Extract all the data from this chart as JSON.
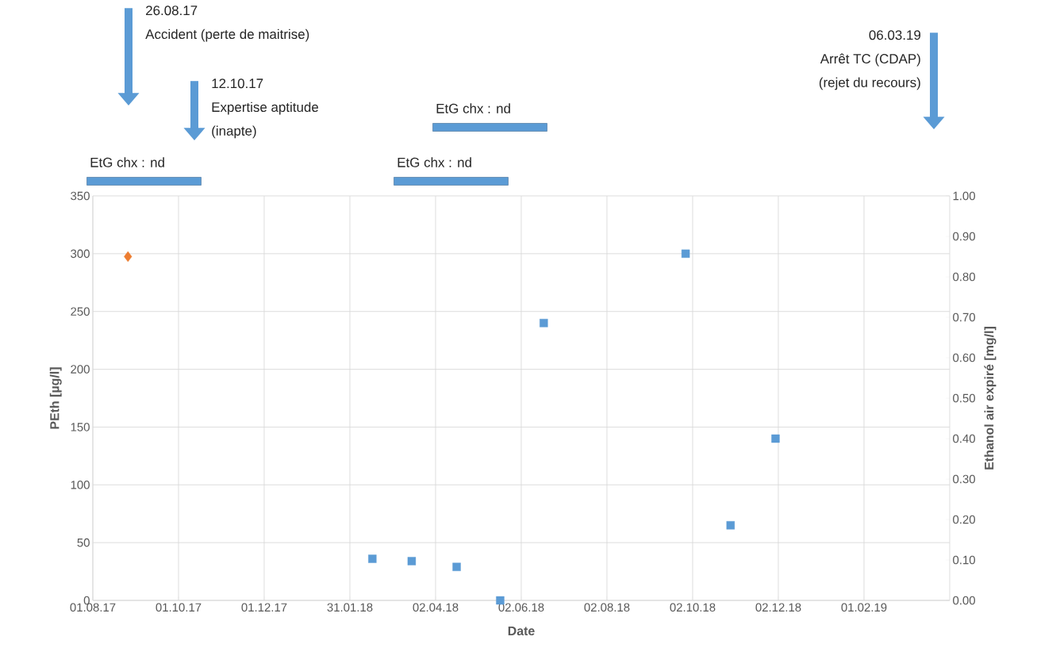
{
  "chart_data": {
    "type": "scatter",
    "xlabel": "Date",
    "ylabel": "PEth [µg/l]",
    "y2label": "Ethanol air expiré [mg/l]",
    "series": [
      {
        "color": "#5b9bd5",
        "marker": "square",
        "x": [
          "2018-02-16",
          "2018-03-16",
          "2018-04-17",
          "2018-05-18",
          "2018-06-18",
          "2018-09-27",
          "2018-10-29",
          "2018-11-30"
        ],
        "values": [
          36,
          34,
          29,
          0,
          240,
          300,
          65,
          140
        ]
      },
      {
        "color": "#ed7d31",
        "marker": "diamond",
        "axis": "y2",
        "x": [
          "2017-08-26"
        ],
        "values": [
          0.85
        ]
      }
    ],
    "xlim": [
      "2017-08-01",
      "2019-04-03"
    ],
    "xticks": [
      {
        "value": "2017-08-01",
        "label": "01.08.17"
      },
      {
        "value": "2017-10-01",
        "label": "01.10.17"
      },
      {
        "value": "2017-12-01",
        "label": "01.12.17"
      },
      {
        "value": "2018-01-31",
        "label": "31.01.18"
      },
      {
        "value": "2018-04-02",
        "label": "02.04.18"
      },
      {
        "value": "2018-06-02",
        "label": "02.06.18"
      },
      {
        "value": "2018-08-02",
        "label": "02.08.18"
      },
      {
        "value": "2018-10-02",
        "label": "02.10.18"
      },
      {
        "value": "2018-12-02",
        "label": "02.12.18"
      },
      {
        "value": "2019-02-01",
        "label": "01.02.19"
      }
    ],
    "ylim": [
      0,
      350
    ],
    "yticks": [
      0,
      50,
      100,
      150,
      200,
      250,
      300,
      350
    ],
    "y2lim": [
      0,
      1
    ],
    "y2ticks": [
      {
        "value": 0,
        "label": "0.00"
      },
      {
        "value": 0.1,
        "label": "0.10"
      },
      {
        "value": 0.2,
        "label": "0.20"
      },
      {
        "value": 0.3,
        "label": "0.30"
      },
      {
        "value": 0.4,
        "label": "0.40"
      },
      {
        "value": 0.5,
        "label": "0.50"
      },
      {
        "value": 0.6,
        "label": "0.60"
      },
      {
        "value": 0.7,
        "label": "0.70"
      },
      {
        "value": 0.8,
        "label": "0.80"
      },
      {
        "value": 0.9,
        "label": "0.90"
      },
      {
        "value": 1,
        "label": "1.00"
      }
    ],
    "grid": true,
    "annotations": [
      "26.08.17",
      "Accident (perte de maitrise)",
      "12.10.17",
      "Expertise aptitude",
      "(inapte)",
      "06.03.19",
      "Arrêt TC (CDAP)",
      "(rejet du recours)",
      "EtG chx : nd",
      "EtG chx : nd",
      "EtG chx : nd"
    ]
  }
}
